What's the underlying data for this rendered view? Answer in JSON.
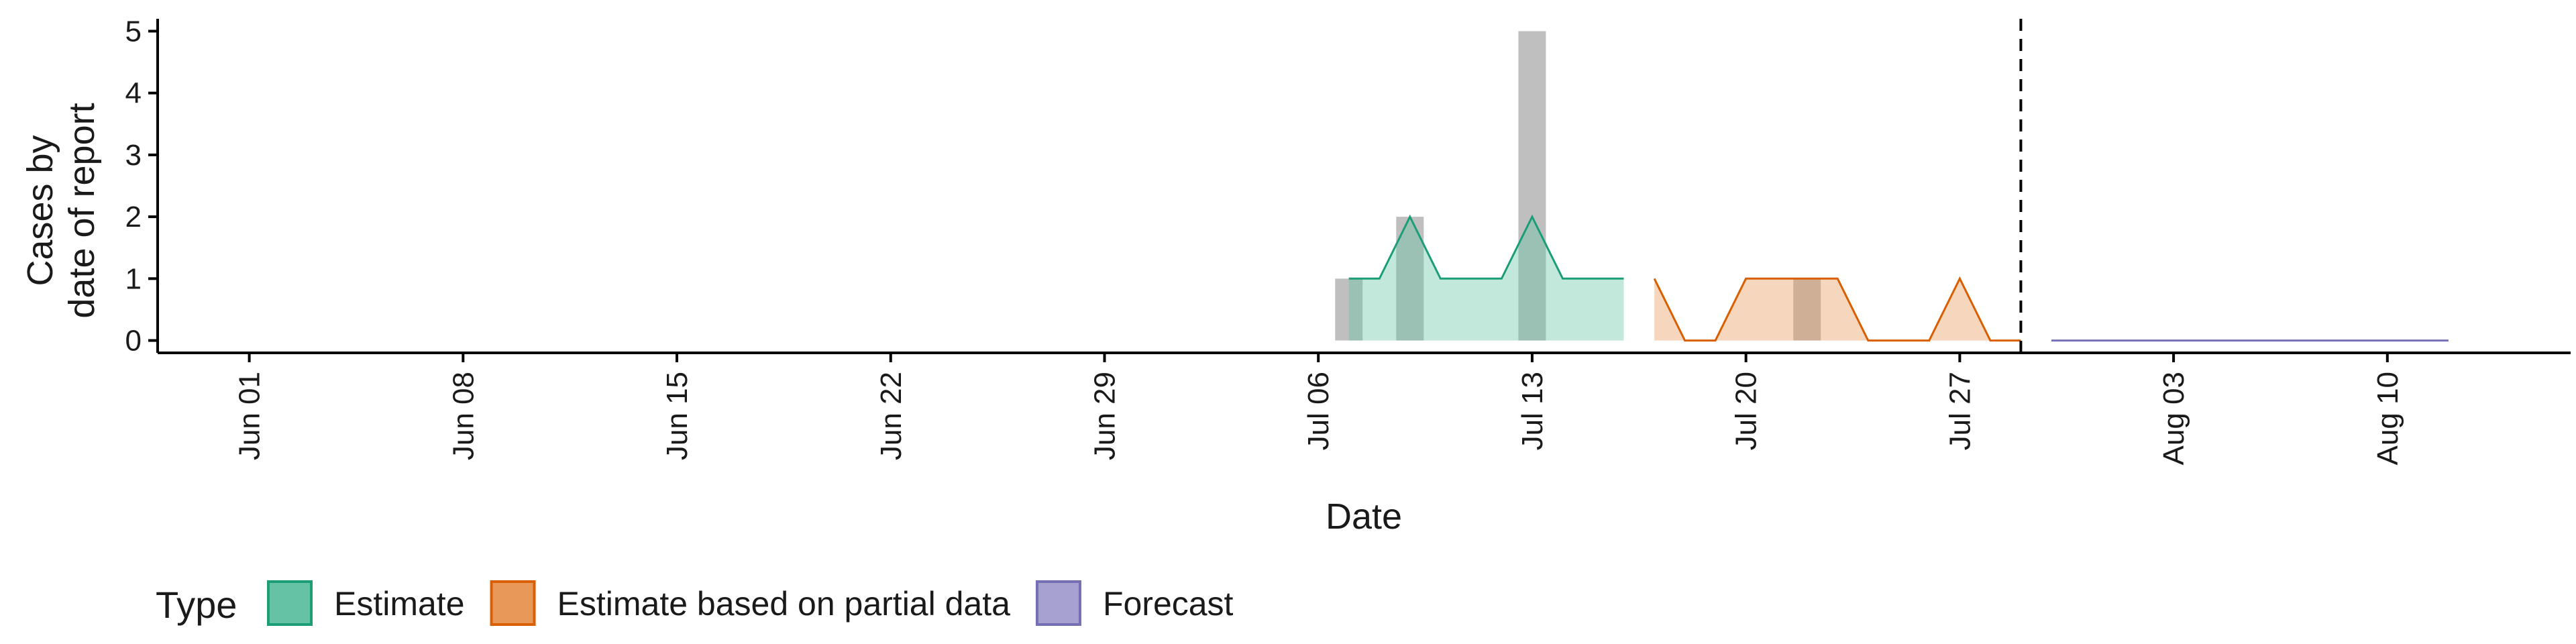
{
  "chart_data": {
    "type": "area",
    "xlabel": "Date",
    "ylabel_lines": [
      "Cases by",
      "date of report"
    ],
    "x_range": [
      "2020-05-29",
      "2020-08-16"
    ],
    "ylim": [
      -0.2,
      5.2
    ],
    "y_ticks": [
      0,
      1,
      2,
      3,
      4,
      5
    ],
    "x_ticks": [
      {
        "date": "2020-06-01",
        "label": "Jun 01"
      },
      {
        "date": "2020-06-08",
        "label": "Jun 08"
      },
      {
        "date": "2020-06-15",
        "label": "Jun 15"
      },
      {
        "date": "2020-06-22",
        "label": "Jun 22"
      },
      {
        "date": "2020-06-29",
        "label": "Jun 29"
      },
      {
        "date": "2020-07-06",
        "label": "Jul 06"
      },
      {
        "date": "2020-07-13",
        "label": "Jul 13"
      },
      {
        "date": "2020-07-20",
        "label": "Jul 20"
      },
      {
        "date": "2020-07-27",
        "label": "Jul 27"
      },
      {
        "date": "2020-08-03",
        "label": "Aug 03"
      },
      {
        "date": "2020-08-10",
        "label": "Aug 10"
      }
    ],
    "reported_cases": [
      {
        "date": "2020-07-07",
        "value": 1
      },
      {
        "date": "2020-07-09",
        "value": 2
      },
      {
        "date": "2020-07-13",
        "value": 5
      },
      {
        "date": "2020-07-22",
        "value": 1
      }
    ],
    "series": [
      {
        "name": "Estimate",
        "color": "#1b9e77",
        "fill": "#66c2a5",
        "points": [
          {
            "date": "2020-07-07",
            "value": 1
          },
          {
            "date": "2020-07-08",
            "value": 1
          },
          {
            "date": "2020-07-09",
            "value": 2
          },
          {
            "date": "2020-07-10",
            "value": 1
          },
          {
            "date": "2020-07-11",
            "value": 1
          },
          {
            "date": "2020-07-12",
            "value": 1
          },
          {
            "date": "2020-07-13",
            "value": 2
          },
          {
            "date": "2020-07-14",
            "value": 1
          },
          {
            "date": "2020-07-15",
            "value": 1
          },
          {
            "date": "2020-07-16",
            "value": 1
          }
        ]
      },
      {
        "name": "Estimate based on partial data",
        "color": "#d95f02",
        "fill": "#e8995a",
        "points": [
          {
            "date": "2020-07-17",
            "value": 1
          },
          {
            "date": "2020-07-18",
            "value": 0
          },
          {
            "date": "2020-07-19",
            "value": 0
          },
          {
            "date": "2020-07-20",
            "value": 1
          },
          {
            "date": "2020-07-21",
            "value": 1
          },
          {
            "date": "2020-07-22",
            "value": 1
          },
          {
            "date": "2020-07-23",
            "value": 1
          },
          {
            "date": "2020-07-24",
            "value": 0
          },
          {
            "date": "2020-07-25",
            "value": 0
          },
          {
            "date": "2020-07-26",
            "value": 0
          },
          {
            "date": "2020-07-27",
            "value": 1
          },
          {
            "date": "2020-07-28",
            "value": 0
          },
          {
            "date": "2020-07-29",
            "value": 0
          }
        ]
      },
      {
        "name": "Forecast",
        "color": "#7570b3",
        "fill": "#a6a1d0",
        "points": [
          {
            "date": "2020-07-30",
            "value": 0
          },
          {
            "date": "2020-08-12",
            "value": 0
          }
        ]
      }
    ],
    "cutoff_date": "2020-07-29",
    "grid": false,
    "legend": {
      "position": "bottom",
      "title": "Type",
      "entries": [
        "Estimate",
        "Estimate based on partial data",
        "Forecast"
      ]
    },
    "bar_color": "#bfbfbf"
  }
}
